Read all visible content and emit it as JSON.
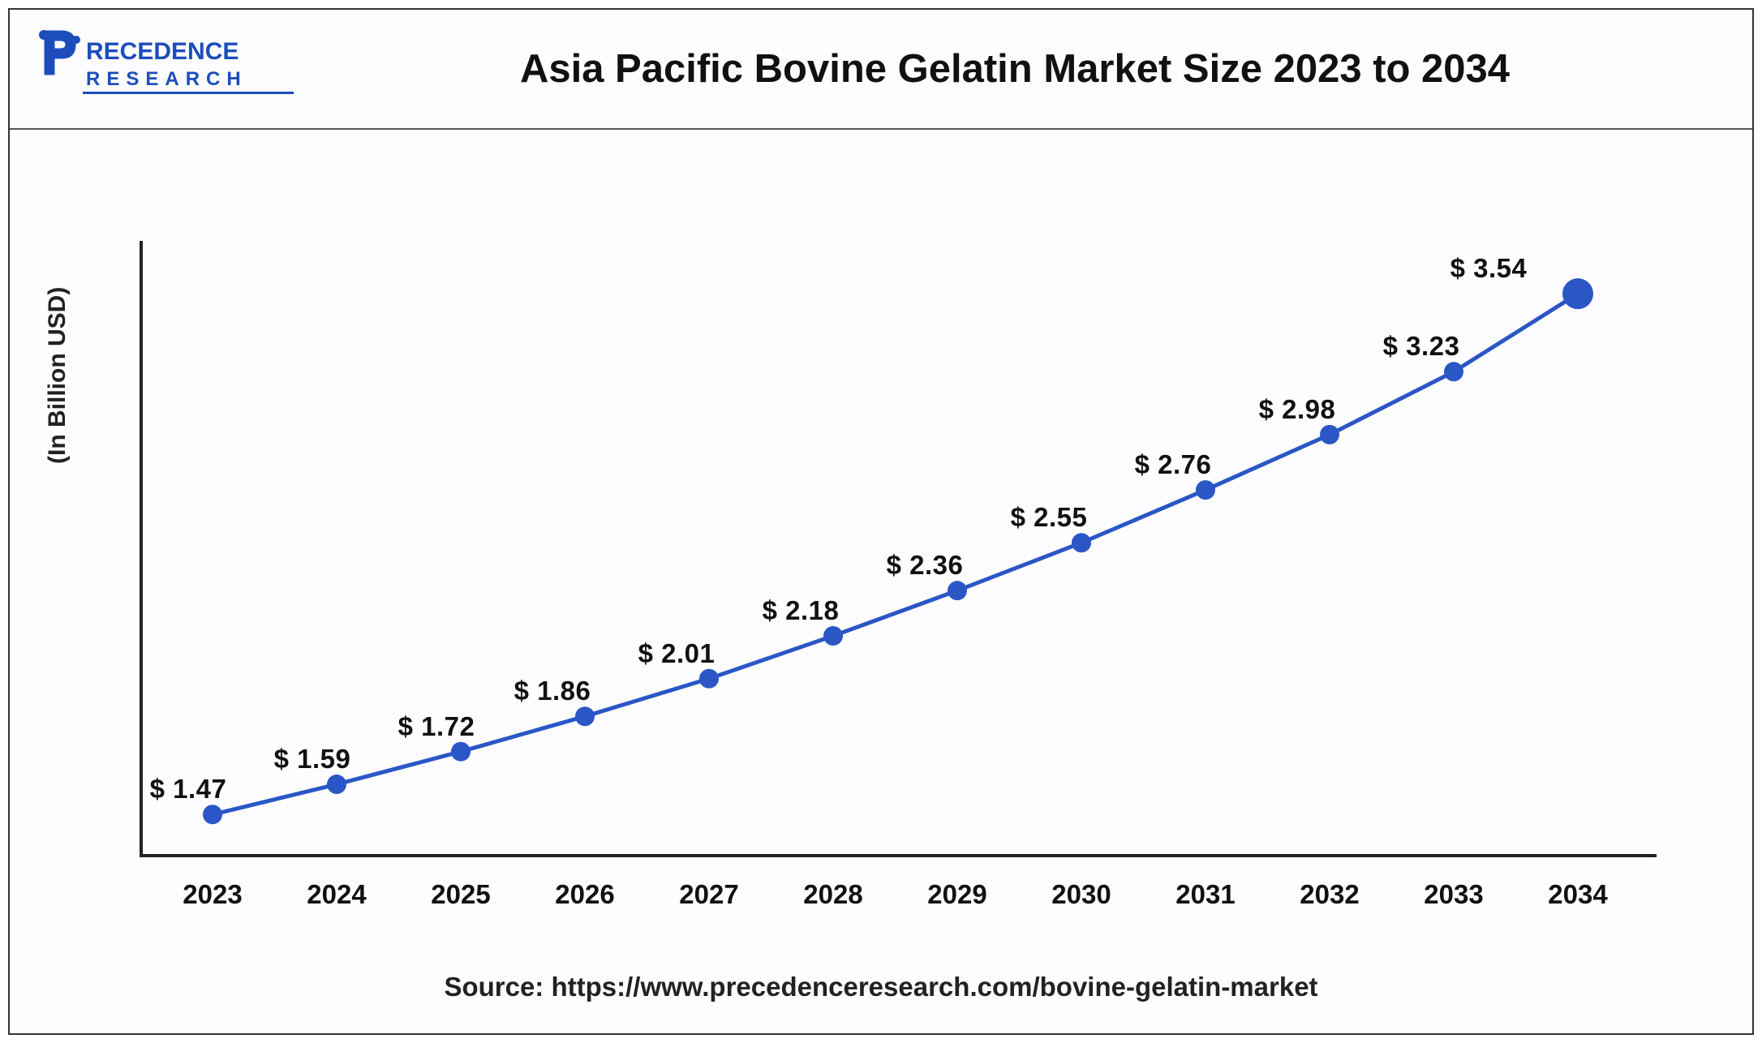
{
  "header": {
    "logo": {
      "line1": "PRECEDENCE",
      "line2": "RESEARCH",
      "color": "#1d4dbb"
    },
    "title": "Asia Pacific Bovine Gelatin Market Size 2023 to 2034"
  },
  "chart": {
    "type": "line",
    "ylabel": "(In Billion USD)",
    "categories": [
      "2023",
      "2024",
      "2025",
      "2026",
      "2027",
      "2028",
      "2029",
      "2030",
      "2031",
      "2032",
      "2033",
      "2034"
    ],
    "values": [
      1.47,
      1.59,
      1.72,
      1.86,
      2.01,
      2.18,
      2.36,
      2.55,
      2.76,
      2.98,
      3.23,
      3.54
    ],
    "value_labels": [
      "$ 1.47",
      "$ 1.59",
      "$ 1.72",
      "$ 1.86",
      "$ 2.01",
      "$ 2.18",
      "$ 2.36",
      "$ 2.55",
      "$ 2.76",
      "$ 2.98",
      "$ 3.23",
      "$ 3.54"
    ],
    "ylim": [
      1.3,
      3.75
    ],
    "line_color": "#2a56c6",
    "line_width": 5,
    "marker_color": "#2a56c6",
    "marker_radius": 12,
    "last_marker_radius": 19,
    "background_color": "#fdfdff",
    "axis_color": "#222222",
    "label_fontsize": 33,
    "tick_fontsize": 33,
    "x_left_pad": 90,
    "x_step": 153,
    "label_offset_y": -40
  },
  "source": {
    "prefix": "Source: ",
    "url": "https://www.precedenceresearch.com/bovine-gelatin-market"
  }
}
